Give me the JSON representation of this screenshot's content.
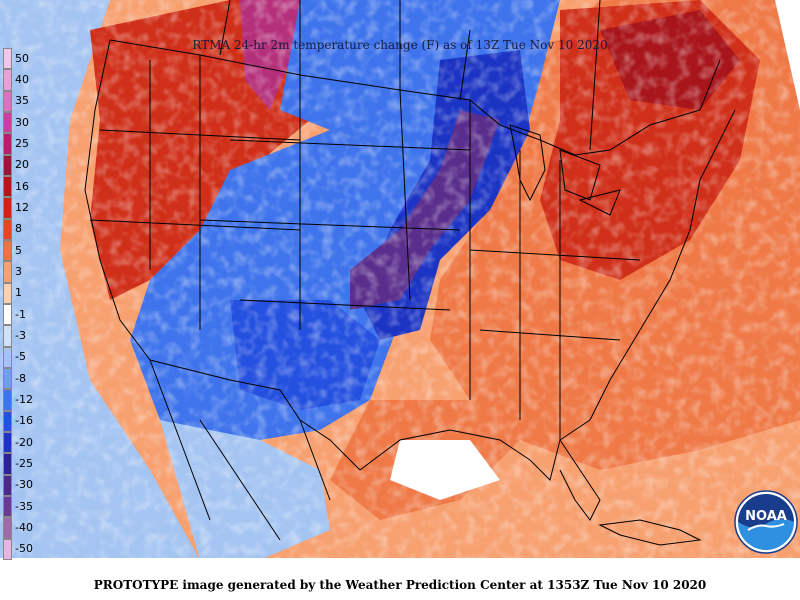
{
  "map": {
    "title": "RTMA 24-hr 2m temperature change (F) as of 13Z Tue Nov 10 2020",
    "footer": "PROTOTYPE image generated by the Weather Prediction Center at 1353Z Tue Nov 10 2020",
    "logo_text": "NOAA"
  },
  "legend": {
    "bins": [
      {
        "label": "50",
        "color": "#f2c6ea"
      },
      {
        "label": "40",
        "color": "#e9a0d8"
      },
      {
        "label": "35",
        "color": "#df6fc1"
      },
      {
        "label": "30",
        "color": "#d23c9f"
      },
      {
        "label": "25",
        "color": "#b81e6c"
      },
      {
        "label": "20",
        "color": "#a1123a"
      },
      {
        "label": "16",
        "color": "#b4141c"
      },
      {
        "label": "12",
        "color": "#cf2414"
      },
      {
        "label": "8",
        "color": "#e3481e"
      },
      {
        "label": "5",
        "color": "#ef7340"
      },
      {
        "label": "3",
        "color": "#f7a070"
      },
      {
        "label": "1",
        "color": "#fcd0b0"
      },
      {
        "label": "-1",
        "color": "#ffffff"
      },
      {
        "label": "-3",
        "color": "#cfe0f8"
      },
      {
        "label": "-5",
        "color": "#a4c4f2"
      },
      {
        "label": "-8",
        "color": "#6f9ff0"
      },
      {
        "label": "-12",
        "color": "#3f74ec"
      },
      {
        "label": "-16",
        "color": "#2551e0"
      },
      {
        "label": "-20",
        "color": "#1c34c4"
      },
      {
        "label": "-25",
        "color": "#2a2498"
      },
      {
        "label": "-30",
        "color": "#4a2a86"
      },
      {
        "label": "-35",
        "color": "#6a3a8e"
      },
      {
        "label": "-40",
        "color": "#a06aa8"
      },
      {
        "label": "-50",
        "color": "#e6b6e0"
      }
    ]
  },
  "colors": {
    "warm_main": "#ef7a48",
    "warm_light": "#f7a070",
    "warm_strong": "#d0301a",
    "warm_dark": "#a8161c",
    "magenta": "#b5307a",
    "cold_light": "#a4c4f2",
    "cold_main": "#3f74ec",
    "cold_deep": "#2551e0",
    "cold_navy": "#1c34c4",
    "cold_purple": "#5a2e8c",
    "water_white": "#ffffff",
    "border": "#000000"
  },
  "icons": [
    "noaa-logo-icon"
  ]
}
